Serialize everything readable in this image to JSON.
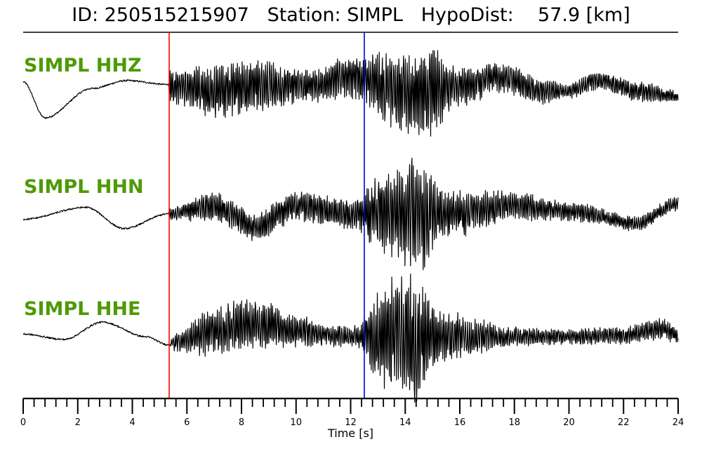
{
  "header": {
    "title": "ID: 250515215907   Station: SIMPL   HypoDist:    57.9 [km]"
  },
  "chart_data": {
    "type": "line",
    "title": "ID: 250515215907   Station: SIMPL   HypoDist:    57.9 [km]",
    "xlabel": "Time [s]",
    "ylabel": "",
    "xlim": [
      0,
      24
    ],
    "xticks": [
      "0",
      "2",
      "4",
      "6",
      "8",
      "10",
      "12",
      "14",
      "16",
      "18",
      "20",
      "22",
      "24"
    ],
    "minor_tick_step": 0.4,
    "grid": false,
    "picks": [
      {
        "phase": "P",
        "time": 5.35,
        "color": "#ff0000"
      },
      {
        "phase": "S",
        "time": 12.5,
        "color": "#0000cc"
      }
    ],
    "label_color": "#4e9a06",
    "trace_color": "#000000",
    "series": [
      {
        "name": "SIMPL HHZ",
        "envelope": [
          {
            "t": 0.0,
            "low": -0.55,
            "level": 0.35,
            "high": -0.55
          },
          {
            "t": 0.8,
            "low": -1.0,
            "level": -1.0,
            "high": -1.0
          },
          {
            "t": 2.5,
            "low": 0.1,
            "level": 0.1,
            "high": 0.1
          },
          {
            "t": 3.8,
            "low": 0.4,
            "level": 0.4,
            "high": 0.4
          },
          {
            "t": 5.3,
            "low": 0.25,
            "level": 0.25,
            "high": 0.25
          },
          {
            "t": 5.4,
            "low": -0.6,
            "level": 0.2,
            "high": 0.9
          },
          {
            "t": 7.0,
            "low": -1.3,
            "level": 0.0,
            "high": 0.9
          },
          {
            "t": 8.5,
            "low": -1.1,
            "level": 0.2,
            "high": 1.1
          },
          {
            "t": 10.5,
            "low": -0.5,
            "level": 0.2,
            "high": 0.8
          },
          {
            "t": 12.0,
            "low": -0.3,
            "level": 0.55,
            "high": 1.5
          },
          {
            "t": 13.5,
            "low": -1.5,
            "level": 0.1,
            "high": 1.6
          },
          {
            "t": 14.8,
            "low": -2.0,
            "level": 0.0,
            "high": 1.8
          },
          {
            "t": 16.0,
            "low": -0.8,
            "level": 0.2,
            "high": 0.8
          },
          {
            "t": 17.5,
            "low": -0.3,
            "level": 0.55,
            "high": 1.0
          },
          {
            "t": 19.0,
            "low": -0.5,
            "level": 0.0,
            "high": 0.5
          },
          {
            "t": 20.0,
            "low": -0.3,
            "level": 0.0,
            "high": 0.3
          },
          {
            "t": 21.0,
            "low": -0.2,
            "level": 0.4,
            "high": 0.6
          },
          {
            "t": 22.5,
            "low": -0.4,
            "level": 0.0,
            "high": 0.4
          },
          {
            "t": 24.0,
            "low": -0.3,
            "level": -0.2,
            "high": 0.2
          }
        ]
      },
      {
        "name": "SIMPL HHN",
        "envelope": [
          {
            "t": 0.0,
            "low": -0.2,
            "level": -0.2,
            "high": -0.2
          },
          {
            "t": 2.3,
            "low": 0.25,
            "level": 0.25,
            "high": 0.25
          },
          {
            "t": 3.7,
            "low": -0.55,
            "level": -0.55,
            "high": -0.55
          },
          {
            "t": 5.3,
            "low": 0.0,
            "level": 0.0,
            "high": 0.0
          },
          {
            "t": 5.4,
            "low": -0.3,
            "level": 0.0,
            "high": 0.3
          },
          {
            "t": 7.0,
            "low": -0.3,
            "level": 0.3,
            "high": 0.9
          },
          {
            "t": 8.5,
            "low": -1.2,
            "level": -0.5,
            "high": 0.0
          },
          {
            "t": 10.0,
            "low": -0.4,
            "level": 0.3,
            "high": 0.8
          },
          {
            "t": 12.0,
            "low": -0.6,
            "level": 0.0,
            "high": 0.6
          },
          {
            "t": 13.5,
            "low": -1.8,
            "level": 0.0,
            "high": 1.8
          },
          {
            "t": 14.3,
            "low": -2.5,
            "level": 0.0,
            "high": 2.5
          },
          {
            "t": 15.5,
            "low": -1.0,
            "level": 0.0,
            "high": 1.0
          },
          {
            "t": 18.0,
            "low": -0.4,
            "level": 0.3,
            "high": 0.8
          },
          {
            "t": 20.0,
            "low": -0.3,
            "level": 0.1,
            "high": 0.5
          },
          {
            "t": 22.5,
            "low": -0.6,
            "level": -0.35,
            "high": 0.0
          },
          {
            "t": 24.0,
            "low": 0.1,
            "level": 0.4,
            "high": 0.7
          }
        ]
      },
      {
        "name": "SIMPL HHE",
        "envelope": [
          {
            "t": 0.0,
            "low": 0.1,
            "level": 0.1,
            "high": 0.1
          },
          {
            "t": 1.5,
            "low": -0.1,
            "level": -0.1,
            "high": -0.1
          },
          {
            "t": 2.9,
            "low": 0.55,
            "level": 0.55,
            "high": 0.55
          },
          {
            "t": 4.5,
            "low": 0.0,
            "level": 0.0,
            "high": 0.0
          },
          {
            "t": 5.3,
            "low": -0.3,
            "level": -0.3,
            "high": -0.3
          },
          {
            "t": 5.6,
            "low": -0.6,
            "level": -0.2,
            "high": 0.2
          },
          {
            "t": 7.0,
            "low": -0.8,
            "level": 0.2,
            "high": 1.2
          },
          {
            "t": 8.5,
            "low": -0.5,
            "level": 0.5,
            "high": 1.6
          },
          {
            "t": 10.0,
            "low": -0.4,
            "level": 0.2,
            "high": 0.8
          },
          {
            "t": 12.0,
            "low": -0.4,
            "level": 0.0,
            "high": 0.4
          },
          {
            "t": 13.5,
            "low": -2.3,
            "level": 0.0,
            "high": 2.3
          },
          {
            "t": 14.2,
            "low": -2.7,
            "level": 0.0,
            "high": 2.7
          },
          {
            "t": 15.5,
            "low": -1.0,
            "level": 0.0,
            "high": 1.0
          },
          {
            "t": 18.0,
            "low": -0.4,
            "level": 0.0,
            "high": 0.4
          },
          {
            "t": 20.0,
            "low": -0.3,
            "level": 0.0,
            "high": 0.3
          },
          {
            "t": 22.0,
            "low": -0.3,
            "level": 0.05,
            "high": 0.4
          },
          {
            "t": 23.5,
            "low": -0.2,
            "level": 0.3,
            "high": 0.7
          },
          {
            "t": 24.0,
            "low": -0.3,
            "level": 0.0,
            "high": 0.3
          }
        ]
      }
    ]
  }
}
